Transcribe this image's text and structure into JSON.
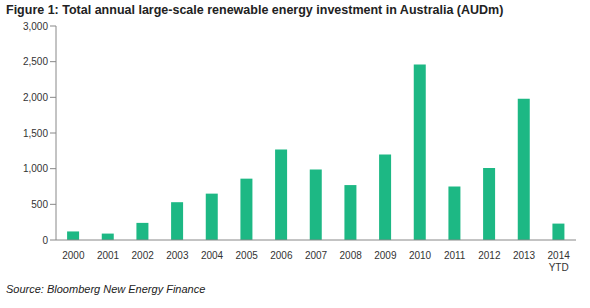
{
  "chart_data": {
    "type": "bar",
    "title": "Figure 1:  Total annual large-scale renewable energy investment in Australia (AUDm)",
    "subtitle": "Source: Bloomberg New Energy Finance",
    "categories": [
      "2000",
      "2001",
      "2002",
      "2003",
      "2004",
      "2005",
      "2006",
      "2007",
      "2008",
      "2009",
      "2010",
      "2011",
      "2012",
      "2013",
      "2014 YTD"
    ],
    "values": [
      120,
      90,
      240,
      530,
      650,
      860,
      1270,
      990,
      770,
      1200,
      2460,
      750,
      1010,
      1980,
      230
    ],
    "color": "#1db884",
    "ylim": [
      0,
      3000
    ],
    "yticks": [
      0,
      500,
      {
        "value": 1000,
        "label": "1,000"
      },
      {
        "value": 1500,
        "label": "1,500"
      },
      {
        "value": 2000,
        "label": "2,000"
      },
      {
        "value": 2500,
        "label": "2,500"
      },
      {
        "value": 3000,
        "label": "3,000"
      }
    ],
    "grid": false
  }
}
